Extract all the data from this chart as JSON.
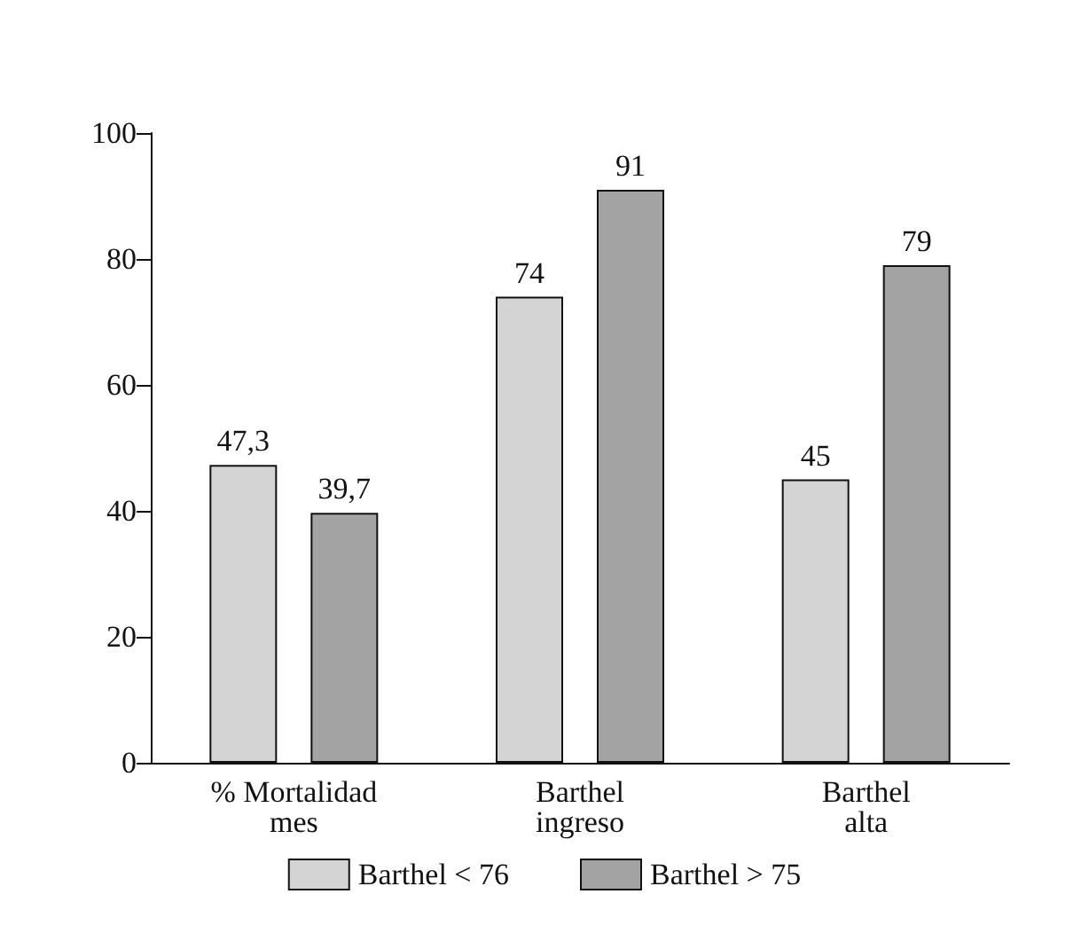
{
  "chart_data": {
    "type": "bar",
    "categories": [
      "% Mortalidad\nmes",
      "Barthel\ningreso",
      "Barthel\nalta"
    ],
    "series": [
      {
        "name": "Barthel < 76",
        "color": "#d4d4d4",
        "values": [
          47.3,
          74,
          45
        ],
        "value_labels": [
          "47,3",
          "74",
          "45"
        ]
      },
      {
        "name": "Barthel > 75",
        "color": "#a3a3a3",
        "values": [
          39.7,
          91,
          79
        ],
        "value_labels": [
          "39,7",
          "91",
          "79"
        ]
      }
    ],
    "ylim": [
      0,
      100
    ],
    "yticks": [
      0,
      20,
      40,
      60,
      80,
      100
    ],
    "grid": false,
    "legend": "bottom"
  }
}
